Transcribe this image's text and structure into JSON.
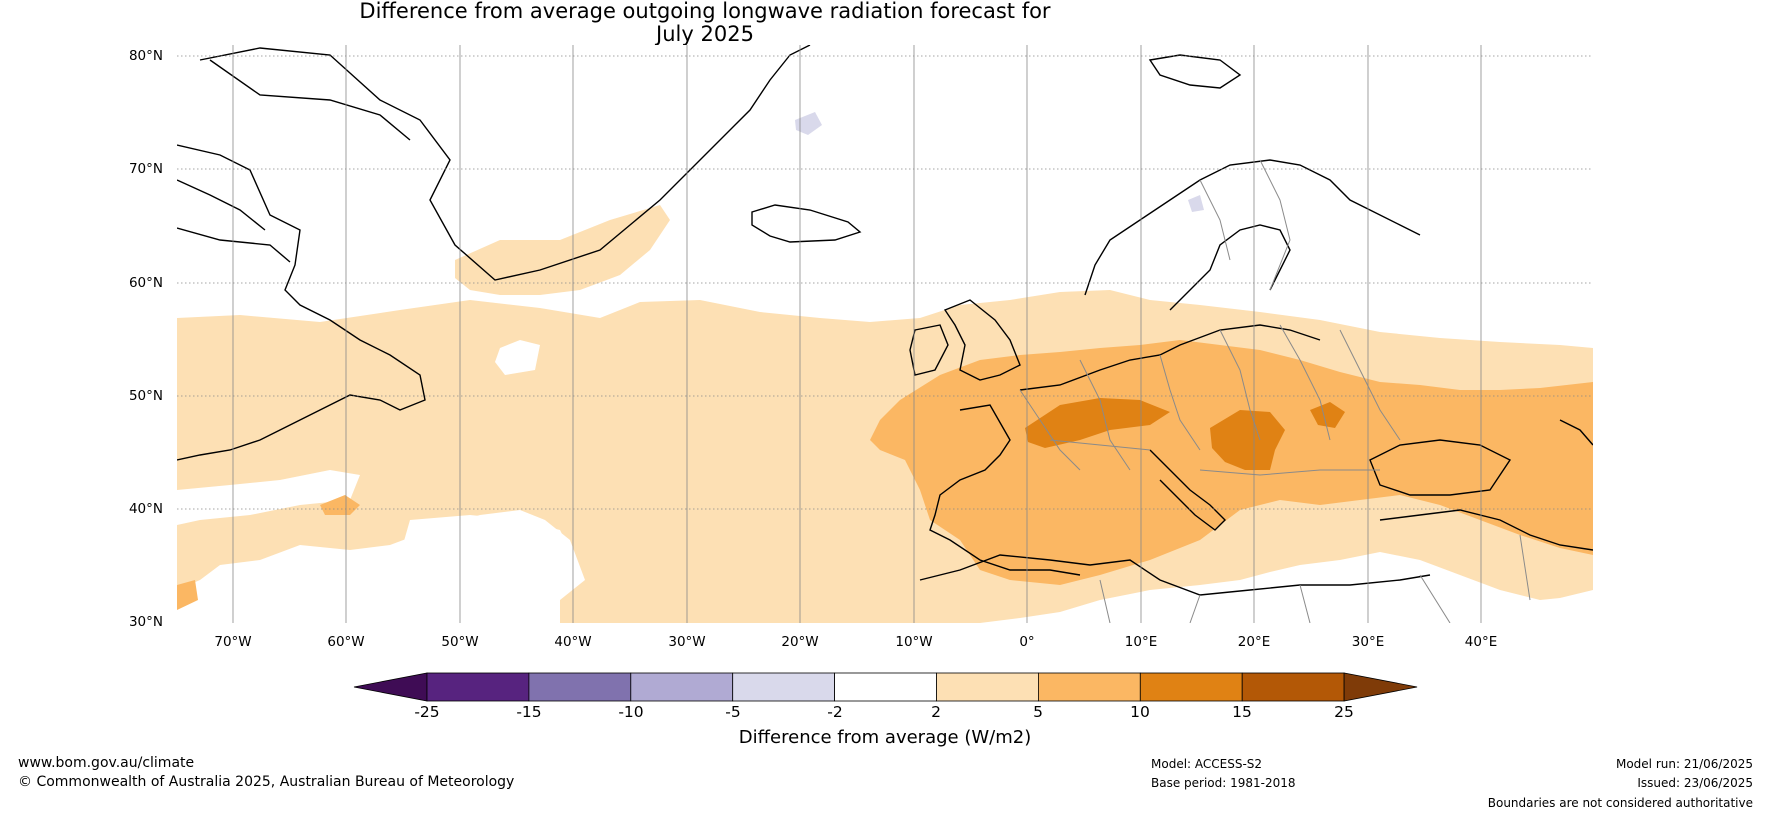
{
  "title_line1": "Difference from average outgoing longwave radiation forecast for",
  "title_line2": "July 2025",
  "lat_labels": [
    "80°N",
    "70°N",
    "60°N",
    "50°N",
    "40°N",
    "30°N"
  ],
  "lon_labels": [
    "70°W",
    "60°W",
    "50°W",
    "40°W",
    "30°W",
    "20°W",
    "10°W",
    "0°",
    "10°E",
    "20°E",
    "30°E",
    "40°E"
  ],
  "colorbar": {
    "ticks": [
      "-25",
      "-15",
      "-10",
      "-5",
      "-2",
      "2",
      "5",
      "10",
      "15",
      "25"
    ],
    "colors": [
      "#3f0c55",
      "#57237f",
      "#8072ae",
      "#b0aad3",
      "#d9d9eb",
      "#ffffff",
      "#fde0b4",
      "#fbb763",
      "#e08214",
      "#b35806",
      "#7f3b08"
    ],
    "label": "Difference from average (W/m2)"
  },
  "footer": {
    "url": "www.bom.gov.au/climate",
    "copyright": "© Commonwealth of Australia 2025, Australian Bureau of Meteorology",
    "model": "Model: ACCESS-S2",
    "base_period": "Base period: 1981-2018",
    "model_run": "Model run: 21/06/2025",
    "issued": "Issued: 23/06/2025",
    "boundaries": "Boundaries are not considered authoritative"
  }
}
